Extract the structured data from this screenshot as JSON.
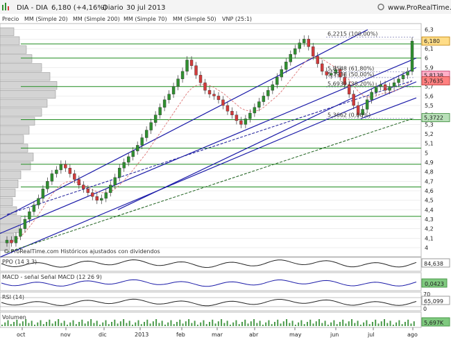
{
  "header": {
    "symbol": "DIA - DIA",
    "last": "6,180 (+4,16%)",
    "period": "Diario",
    "date": "30 jul 2013",
    "site": "www.ProRealTime.com",
    "watermark": "© ProRealTime.com  Históricos ajustados con dividendos"
  },
  "legend": {
    "price": "Precio",
    "mm20": "MM (Simple 20)",
    "mm200": "MM (Simple 200)",
    "mm70": "MM (Simple 70)",
    "mm50": "MM (Simple 50)",
    "vnp": "VNP (25:1)"
  },
  "colors": {
    "up": "#2f8f2f",
    "down": "#d13b3b",
    "channel": "#1a1aa8",
    "sr": "#1e8c1e",
    "mm200": "#2c6b2c",
    "mm70": "#2828a0",
    "mm20": "#e08080",
    "price_pill": "#ffe0a0",
    "grid": "#dddddd"
  },
  "price_axis": [
    "6,3",
    "6,2",
    "6,1",
    "6",
    "5,9",
    "5,8",
    "5,7",
    "5,6",
    "5,5",
    "5,4",
    "5,3",
    "5,2",
    "5,1",
    "5",
    "4,9",
    "4,8",
    "4,7",
    "4,6",
    "4,5",
    "4,4",
    "4,3",
    "4,2",
    "4,1",
    "4"
  ],
  "price_labels": {
    "last": "6,180",
    "pink": "5,8138",
    "red": "5,7635",
    "green": "5,3722"
  },
  "fib_labels": [
    {
      "text": "6,2215 (100,00%)",
      "v": 6.2215
    },
    {
      "text": "5,8548 (61,80%)",
      "v": 5.855
    },
    {
      "text": "5,7938 (50,00%)",
      "v": 5.794
    },
    {
      "text": "5,6939 (38,20%)",
      "v": 5.694
    },
    {
      "text": "5,3662 (0,00%)",
      "v": 5.366
    }
  ],
  "x_months": [
    "oct",
    "nov",
    "dic",
    "2013",
    "feb",
    "mar",
    "abr",
    "may",
    "jun",
    "jul",
    "ago"
  ],
  "indicators": {
    "ppo_label": "PPO (14 3 3)",
    "ppo_value": "84,638",
    "macd_label": "MACD - señal  Señal  MACD (12 26 9)",
    "macd_value": "0,0423",
    "rsi_label": "RSI (14)",
    "rsi_value": "65,099",
    "rsi_ticks": [
      "70",
      "30",
      "0"
    ],
    "vol_label": "Volumen",
    "vol_value": "5,697K"
  },
  "chart_data": {
    "type": "candlestick",
    "title": "DIA - DIA",
    "period": "Diario",
    "ylim": [
      4.0,
      6.32
    ],
    "x_range": [
      "sep 2012",
      "jul 2013"
    ],
    "last_close": 6.18,
    "change_pct": 4.16,
    "support_resistance": [
      6.15,
      6.0,
      5.7,
      5.35,
      5.05,
      4.88,
      4.64,
      4.33
    ],
    "closes": [
      4.08,
      4.05,
      4.12,
      4.2,
      4.3,
      4.38,
      4.45,
      4.52,
      4.62,
      4.7,
      4.78,
      4.82,
      4.88,
      4.84,
      4.78,
      4.72,
      4.66,
      4.62,
      4.58,
      4.54,
      4.5,
      4.52,
      4.58,
      4.66,
      4.74,
      4.84,
      4.9,
      4.96,
      5.02,
      5.08,
      5.16,
      5.24,
      5.32,
      5.4,
      5.48,
      5.56,
      5.62,
      5.7,
      5.78,
      5.86,
      5.98,
      5.92,
      5.82,
      5.74,
      5.66,
      5.62,
      5.6,
      5.56,
      5.5,
      5.44,
      5.4,
      5.34,
      5.3,
      5.36,
      5.42,
      5.48,
      5.54,
      5.6,
      5.66,
      5.72,
      5.8,
      5.88,
      5.96,
      6.04,
      6.1,
      6.16,
      6.2,
      6.12,
      6.02,
      5.94,
      5.86,
      5.82,
      5.84,
      5.88,
      5.8,
      5.72,
      5.62,
      5.5,
      5.4,
      5.46,
      5.56,
      5.64,
      5.7,
      5.72,
      5.66,
      5.7,
      5.74,
      5.78,
      5.82,
      5.86,
      6.18
    ],
    "mm20_series": [
      4.05,
      4.06,
      4.08,
      4.12,
      4.16,
      4.22,
      4.28,
      4.35,
      4.42,
      4.5,
      4.56,
      4.62,
      4.66,
      4.69,
      4.7,
      4.7,
      4.68,
      4.66,
      4.64,
      4.61,
      4.59,
      4.58,
      4.58,
      4.59,
      4.62,
      4.66,
      4.71,
      4.76,
      4.82,
      4.88,
      4.94,
      5.0,
      5.07,
      5.14,
      5.21,
      5.28,
      5.35,
      5.42,
      5.49,
      5.56,
      5.63,
      5.68,
      5.71,
      5.72,
      5.72,
      5.71,
      5.69,
      5.66,
      5.63,
      5.59,
      5.55,
      5.51,
      5.47,
      5.45,
      5.44,
      5.44,
      5.45,
      5.48,
      5.52,
      5.56,
      5.6,
      5.65,
      5.71,
      5.77,
      5.83,
      5.89,
      5.95,
      5.99,
      6.01,
      6.01,
      5.99,
      5.96,
      5.93,
      5.9,
      5.86,
      5.82,
      5.77,
      5.71,
      5.65,
      5.61,
      5.59,
      5.59,
      5.6,
      5.62,
      5.63,
      5.64,
      5.65,
      5.67,
      5.7,
      5.73,
      5.76
    ],
    "mm70_start_end": [
      4.35,
      5.76
    ],
    "mm200_start_end": [
      3.95,
      5.36
    ]
  }
}
